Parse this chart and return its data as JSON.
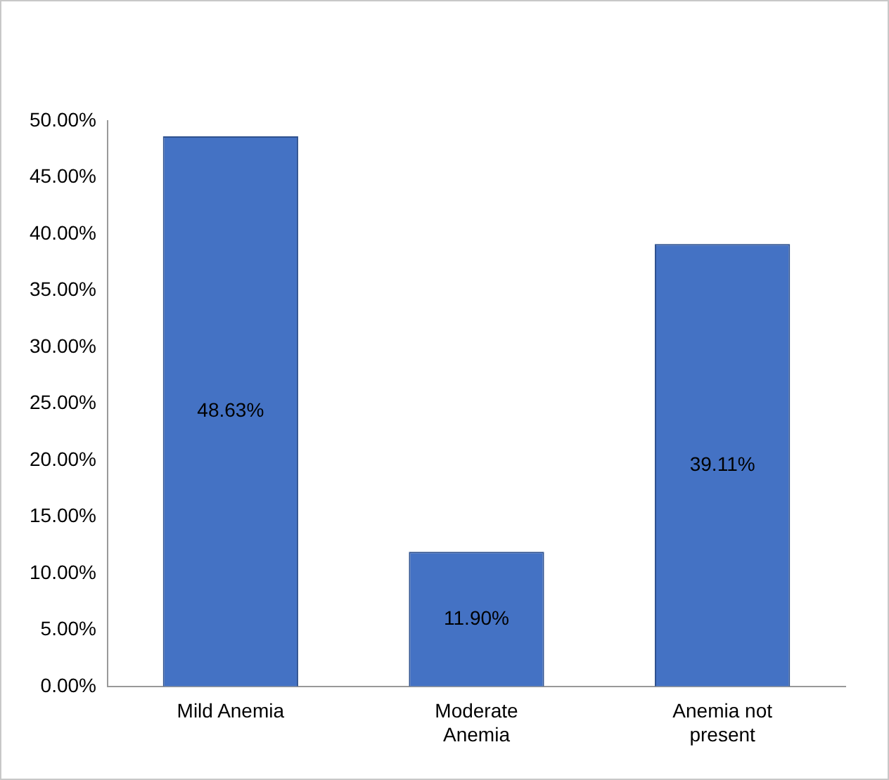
{
  "chart_data": {
    "type": "bar",
    "categories": [
      "Mild Anemia",
      "Moderate Anemia",
      "Anemia not present"
    ],
    "values": [
      48.63,
      11.9,
      39.11
    ],
    "value_labels": [
      "48.63%",
      "11.90%",
      "39.11%"
    ],
    "color": "#4472c4",
    "ylim": [
      0,
      50
    ],
    "yticks": [
      {
        "value": 0,
        "label": "0.00%"
      },
      {
        "value": 5,
        "label": "5.00%"
      },
      {
        "value": 10,
        "label": "10.00%"
      },
      {
        "value": 15,
        "label": "15.00%"
      },
      {
        "value": 20,
        "label": "20.00%"
      },
      {
        "value": 25,
        "label": "25.00%"
      },
      {
        "value": 30,
        "label": "30.00%"
      },
      {
        "value": 35,
        "label": "35.00%"
      },
      {
        "value": 40,
        "label": "40.00%"
      },
      {
        "value": 45,
        "label": "45.00%"
      },
      {
        "value": 50,
        "label": "50.00%"
      }
    ],
    "grid": false,
    "legend": false
  }
}
